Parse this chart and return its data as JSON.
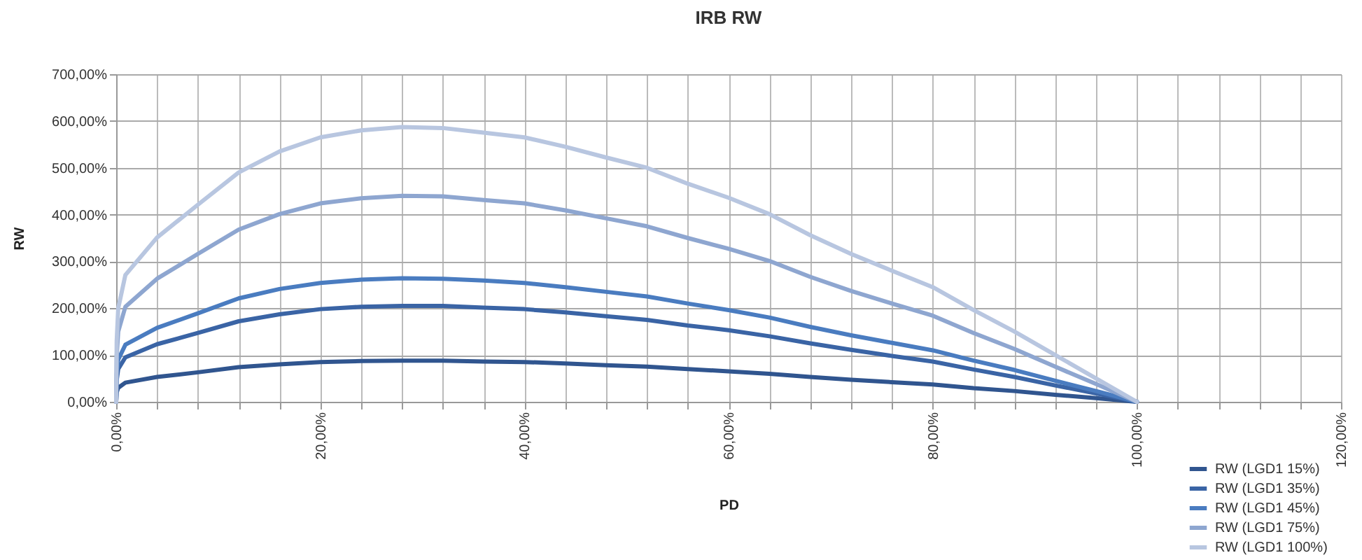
{
  "chart_data": {
    "type": "line",
    "title": "IRB RW",
    "xlabel": "PD",
    "ylabel": "RW",
    "x": [
      0,
      0.05,
      0.2,
      0.9,
      4,
      8,
      12,
      16,
      20,
      24,
      28,
      32,
      36,
      40,
      44,
      48,
      52,
      56,
      60,
      64,
      68,
      72,
      76,
      80,
      84,
      88,
      92,
      96,
      100
    ],
    "series": [
      {
        "name": "RW (LGD1 15%)",
        "color": "#30558f",
        "values": [
          0,
          20,
          30,
          41,
          53,
          63,
          74,
          80,
          85,
          87,
          88,
          88,
          86,
          85,
          82,
          78,
          75,
          70,
          65,
          60,
          53,
          47,
          42,
          37,
          29,
          23,
          15,
          8,
          0
        ]
      },
      {
        "name": "RW (LGD1 35%)",
        "color": "#3a64a5",
        "values": [
          0,
          46,
          70,
          95,
          123,
          147,
          172,
          187,
          198,
          203,
          205,
          205,
          201,
          198,
          191,
          183,
          175,
          163,
          153,
          140,
          125,
          111,
          98,
          86,
          69,
          53,
          35,
          18,
          0
        ]
      },
      {
        "name": "RW (LGD1 45%)",
        "color": "#4a7cc0",
        "values": [
          0,
          59,
          90,
          122,
          158,
          189,
          221,
          241,
          254,
          261,
          264,
          263,
          259,
          254,
          245,
          235,
          225,
          210,
          196,
          180,
          160,
          142,
          126,
          110,
          88,
          68,
          45,
          23,
          0
        ]
      },
      {
        "name": "RW (LGD1 75%)",
        "color": "#8ea6d0",
        "values": [
          0,
          98,
          150,
          203,
          263,
          316,
          368,
          401,
          424,
          435,
          440,
          439,
          431,
          424,
          409,
          392,
          375,
          350,
          327,
          301,
          267,
          237,
          210,
          184,
          147,
          113,
          75,
          38,
          0
        ]
      },
      {
        "name": "RW (LGD1 100%)",
        "color": "#b8c6e0",
        "values": [
          0,
          130,
          200,
          271,
          351,
          421,
          490,
          535,
          565,
          580,
          587,
          585,
          575,
          565,
          545,
          522,
          500,
          466,
          436,
          401,
          356,
          316,
          280,
          245,
          196,
          150,
          100,
          50,
          0
        ]
      }
    ],
    "xlim": [
      0,
      120
    ],
    "xticks": [
      {
        "value": 0,
        "label": "0,00%"
      },
      {
        "value": 4,
        "label": null
      },
      {
        "value": 8,
        "label": null
      },
      {
        "value": 12,
        "label": null
      },
      {
        "value": 16,
        "label": null
      },
      {
        "value": 20,
        "label": "20,00%"
      },
      {
        "value": 24,
        "label": null
      },
      {
        "value": 28,
        "label": null
      },
      {
        "value": 32,
        "label": null
      },
      {
        "value": 36,
        "label": null
      },
      {
        "value": 40,
        "label": "40,00%"
      },
      {
        "value": 44,
        "label": null
      },
      {
        "value": 48,
        "label": null
      },
      {
        "value": 52,
        "label": null
      },
      {
        "value": 56,
        "label": null
      },
      {
        "value": 60,
        "label": "60,00%"
      },
      {
        "value": 64,
        "label": null
      },
      {
        "value": 68,
        "label": null
      },
      {
        "value": 72,
        "label": null
      },
      {
        "value": 76,
        "label": null
      },
      {
        "value": 80,
        "label": "80,00%"
      },
      {
        "value": 84,
        "label": null
      },
      {
        "value": 88,
        "label": null
      },
      {
        "value": 92,
        "label": null
      },
      {
        "value": 96,
        "label": null
      },
      {
        "value": 100,
        "label": "100,00%"
      },
      {
        "value": 104,
        "label": null
      },
      {
        "value": 108,
        "label": null
      },
      {
        "value": 112,
        "label": null
      },
      {
        "value": 116,
        "label": null
      },
      {
        "value": 120,
        "label": "120,00%"
      }
    ],
    "ylim": [
      0,
      700
    ],
    "yticks": [
      {
        "value": 0,
        "label": "0,00%"
      },
      {
        "value": 100,
        "label": "100,00%"
      },
      {
        "value": 200,
        "label": "200,00%"
      },
      {
        "value": 300,
        "label": "300,00%"
      },
      {
        "value": 400,
        "label": "400,00%"
      },
      {
        "value": 500,
        "label": "500,00%"
      },
      {
        "value": 600,
        "label": "600,00%"
      },
      {
        "value": 700,
        "label": "700,00%"
      }
    ],
    "grid": true,
    "legend": "bottom right",
    "marker": "none",
    "line_style": "solid"
  }
}
